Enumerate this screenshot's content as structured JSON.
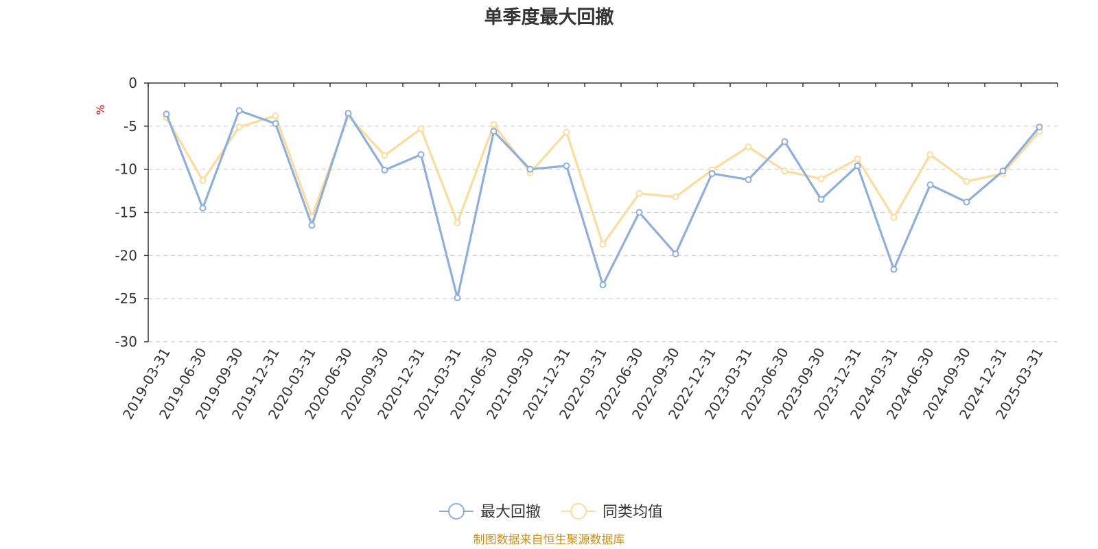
{
  "chart_data": {
    "type": "line",
    "title": "单季度最大回撤",
    "ylabel": "%",
    "ylim": [
      -30,
      0
    ],
    "yticks": [
      0,
      -5,
      -10,
      -15,
      -20,
      -25,
      -30
    ],
    "grid": true,
    "legend_position": "bottom",
    "categories": [
      "2019-03-31",
      "2019-06-30",
      "2019-09-30",
      "2019-12-31",
      "2020-03-31",
      "2020-06-30",
      "2020-09-30",
      "2020-12-31",
      "2021-03-31",
      "2021-06-30",
      "2021-09-30",
      "2021-12-31",
      "2022-03-31",
      "2022-06-30",
      "2022-09-30",
      "2022-12-31",
      "2023-03-31",
      "2023-06-30",
      "2023-09-30",
      "2023-12-31",
      "2024-03-31",
      "2024-06-30",
      "2024-09-30",
      "2024-12-31",
      "2025-03-31"
    ],
    "series": [
      {
        "name": "最大回撤",
        "color": "#8eaedb",
        "values": [
          -3.6,
          -14.5,
          -3.2,
          -4.7,
          -16.5,
          -3.5,
          -10.1,
          -8.3,
          -24.9,
          -5.6,
          -10.0,
          -9.6,
          -23.4,
          -15.0,
          -19.8,
          -10.5,
          -11.2,
          -6.8,
          -13.5,
          -9.6,
          -21.6,
          -11.8,
          -13.8,
          -10.2,
          -5.1
        ]
      },
      {
        "name": "同类均值",
        "color": "#fcdb9c",
        "values": [
          -4.0,
          -11.3,
          -5.1,
          -3.8,
          -15.5,
          -3.8,
          -8.4,
          -5.3,
          -16.2,
          -4.8,
          -10.4,
          -5.7,
          -18.7,
          -12.8,
          -13.2,
          -10.1,
          -7.4,
          -10.2,
          -11.1,
          -8.8,
          -15.6,
          -8.3,
          -11.4,
          -10.5,
          -5.6
        ]
      }
    ]
  },
  "source_note": "制图数据来自恒生聚源数据库"
}
